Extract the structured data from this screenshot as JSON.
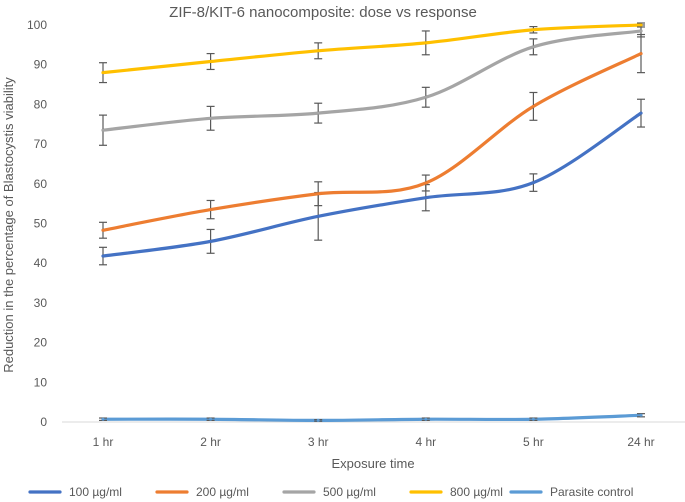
{
  "chart_data": {
    "type": "line",
    "title": "ZIF-8/KIT-6 nanocomposite: dose vs response",
    "xlabel": "Exposure time",
    "ylabel": "Reduction in the percentage of Blastocystis viability",
    "categories": [
      "1 hr",
      "2 hr",
      "3 hr",
      "4 hr",
      "5 hr",
      "24 hr"
    ],
    "ylim": [
      0,
      100
    ],
    "yticks": [
      0,
      10,
      20,
      30,
      40,
      50,
      60,
      70,
      80,
      90,
      100
    ],
    "grid": false,
    "legend_position": "bottom",
    "series": [
      {
        "name": "100 µg/ml",
        "color": "#4472C4",
        "values": [
          41.8,
          45.5,
          51.8,
          56.5,
          60.3,
          77.8
        ],
        "errors": [
          2.2,
          3.0,
          6.0,
          3.3,
          2.2,
          3.5
        ]
      },
      {
        "name": "200 µg/ml",
        "color": "#ED7D31",
        "values": [
          48.3,
          53.5,
          57.5,
          60.2,
          79.5,
          92.8
        ],
        "errors": [
          2.0,
          2.3,
          3.0,
          2.0,
          3.5,
          4.8
        ]
      },
      {
        "name": "500 µg/ml",
        "color": "#A5A5A5",
        "values": [
          73.5,
          76.5,
          77.8,
          81.8,
          94.5,
          98.5
        ],
        "errors": [
          3.8,
          3.0,
          2.5,
          2.5,
          2.0,
          1.5
        ]
      },
      {
        "name": "800 µg/ml",
        "color": "#FFC000",
        "values": [
          88.0,
          90.8,
          93.5,
          95.5,
          98.8,
          100.0
        ],
        "errors": [
          2.5,
          2.0,
          2.0,
          3.0,
          0.8,
          0.5
        ]
      },
      {
        "name": "Parasite control",
        "color": "#5B9BD5",
        "values": [
          0.7,
          0.7,
          0.4,
          0.7,
          0.7,
          1.7
        ],
        "errors": [
          0.3,
          0.3,
          0.2,
          0.3,
          0.3,
          0.4
        ]
      }
    ]
  }
}
